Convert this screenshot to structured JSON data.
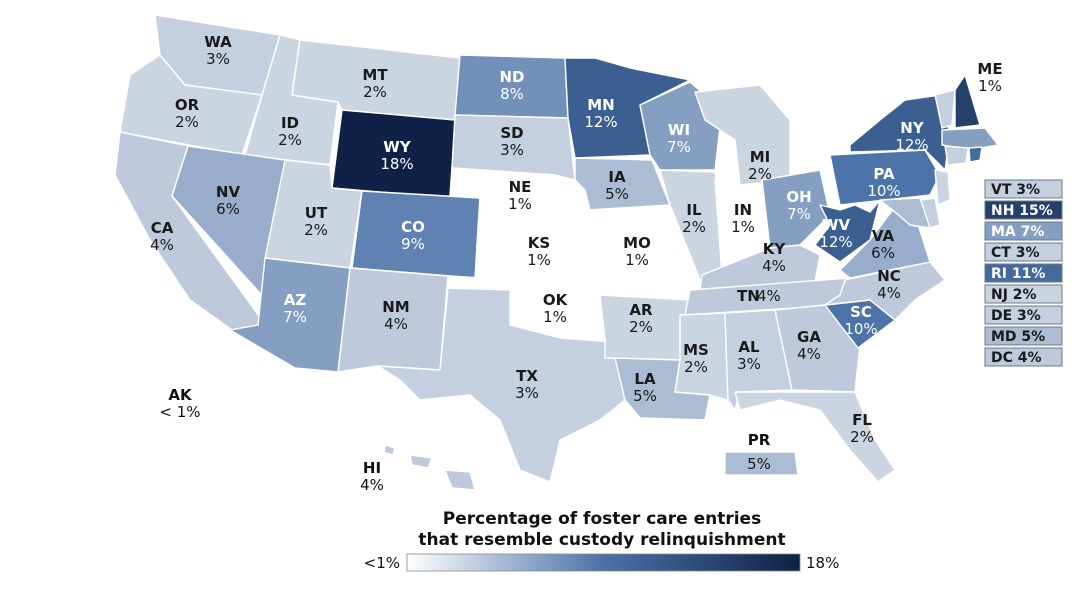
{
  "colors": {
    "min": "#ffffff",
    "mid": "#4a72a8",
    "max": "#0f2146",
    "border": "#ffffff",
    "box_border": "#6c7a8c"
  },
  "legend": {
    "title_line1": "Percentage of foster care entries",
    "title_line2": "that resemble custody relinquishment",
    "min_label": "<1%",
    "max_label": "18%",
    "min_value": 0.5,
    "max_value": 18
  },
  "states": [
    {
      "code": "WA",
      "label": "WA",
      "value_text": "3%",
      "value": 3
    },
    {
      "code": "OR",
      "label": "OR",
      "value_text": "2%",
      "value": 2
    },
    {
      "code": "CA",
      "label": "CA",
      "value_text": "4%",
      "value": 4
    },
    {
      "code": "ID",
      "label": "ID",
      "value_text": "2%",
      "value": 2
    },
    {
      "code": "NV",
      "label": "NV",
      "value_text": "6%",
      "value": 6
    },
    {
      "code": "MT",
      "label": "MT",
      "value_text": "2%",
      "value": 2
    },
    {
      "code": "WY",
      "label": "WY",
      "value_text": "18%",
      "value": 18
    },
    {
      "code": "UT",
      "label": "UT",
      "value_text": "2%",
      "value": 2
    },
    {
      "code": "AZ",
      "label": "AZ",
      "value_text": "7%",
      "value": 7
    },
    {
      "code": "CO",
      "label": "CO",
      "value_text": "9%",
      "value": 9
    },
    {
      "code": "NM",
      "label": "NM",
      "value_text": "4%",
      "value": 4
    },
    {
      "code": "ND",
      "label": "ND",
      "value_text": "8%",
      "value": 8
    },
    {
      "code": "SD",
      "label": "SD",
      "value_text": "3%",
      "value": 3
    },
    {
      "code": "NE",
      "label": "NE",
      "value_text": "1%",
      "value": 1
    },
    {
      "code": "KS",
      "label": "KS",
      "value_text": "1%",
      "value": 1
    },
    {
      "code": "OK",
      "label": "OK",
      "value_text": "1%",
      "value": 1
    },
    {
      "code": "TX",
      "label": "TX",
      "value_text": "3%",
      "value": 3
    },
    {
      "code": "MN",
      "label": "MN",
      "value_text": "12%",
      "value": 12
    },
    {
      "code": "IA",
      "label": "IA",
      "value_text": "5%",
      "value": 5
    },
    {
      "code": "MO",
      "label": "MO",
      "value_text": "1%",
      "value": 1
    },
    {
      "code": "AR",
      "label": "AR",
      "value_text": "2%",
      "value": 2
    },
    {
      "code": "LA",
      "label": "LA",
      "value_text": "5%",
      "value": 5
    },
    {
      "code": "WI",
      "label": "WI",
      "value_text": "7%",
      "value": 7
    },
    {
      "code": "IL",
      "label": "IL",
      "value_text": "2%",
      "value": 2
    },
    {
      "code": "MI",
      "label": "MI",
      "value_text": "2%",
      "value": 2
    },
    {
      "code": "IN",
      "label": "IN",
      "value_text": "1%",
      "value": 1
    },
    {
      "code": "OH",
      "label": "OH",
      "value_text": "7%",
      "value": 7
    },
    {
      "code": "KY",
      "label": "KY",
      "value_text": "4%",
      "value": 4
    },
    {
      "code": "TN",
      "label": "TN",
      "value_text": "4%",
      "value": 4
    },
    {
      "code": "MS",
      "label": "MS",
      "value_text": "2%",
      "value": 2
    },
    {
      "code": "AL",
      "label": "AL",
      "value_text": "3%",
      "value": 3
    },
    {
      "code": "GA",
      "label": "GA",
      "value_text": "4%",
      "value": 4
    },
    {
      "code": "FL",
      "label": "FL",
      "value_text": "2%",
      "value": 2
    },
    {
      "code": "SC",
      "label": "SC",
      "value_text": "10%",
      "value": 10
    },
    {
      "code": "NC",
      "label": "NC",
      "value_text": "4%",
      "value": 4
    },
    {
      "code": "VA",
      "label": "VA",
      "value_text": "6%",
      "value": 6
    },
    {
      "code": "WV",
      "label": "WV",
      "value_text": "12%",
      "value": 12
    },
    {
      "code": "PA",
      "label": "PA",
      "value_text": "10%",
      "value": 10
    },
    {
      "code": "NY",
      "label": "NY",
      "value_text": "12%",
      "value": 12
    },
    {
      "code": "ME",
      "label": "ME",
      "value_text": "1%",
      "value": 1
    },
    {
      "code": "AK",
      "label": "AK",
      "value_text": "< 1%",
      "value": 0.5
    },
    {
      "code": "HI",
      "label": "HI",
      "value_text": "4%",
      "value": 4
    },
    {
      "code": "PR",
      "label": "PR",
      "value_text": "5%",
      "value": 5
    }
  ],
  "small_states": [
    {
      "code": "VT",
      "label": "VT",
      "value_text": "3%",
      "value": 3
    },
    {
      "code": "NH",
      "label": "NH",
      "value_text": "15%",
      "value": 15
    },
    {
      "code": "MA",
      "label": "MA",
      "value_text": "7%",
      "value": 7
    },
    {
      "code": "CT",
      "label": "CT",
      "value_text": "3%",
      "value": 3
    },
    {
      "code": "RI",
      "label": "RI",
      "value_text": "11%",
      "value": 11
    },
    {
      "code": "NJ",
      "label": "NJ",
      "value_text": "2%",
      "value": 2
    },
    {
      "code": "DE",
      "label": "DE",
      "value_text": "3%",
      "value": 3
    },
    {
      "code": "MD",
      "label": "MD",
      "value_text": "5%",
      "value": 5
    },
    {
      "code": "DC",
      "label": "DC",
      "value_text": "4%",
      "value": 4
    }
  ]
}
